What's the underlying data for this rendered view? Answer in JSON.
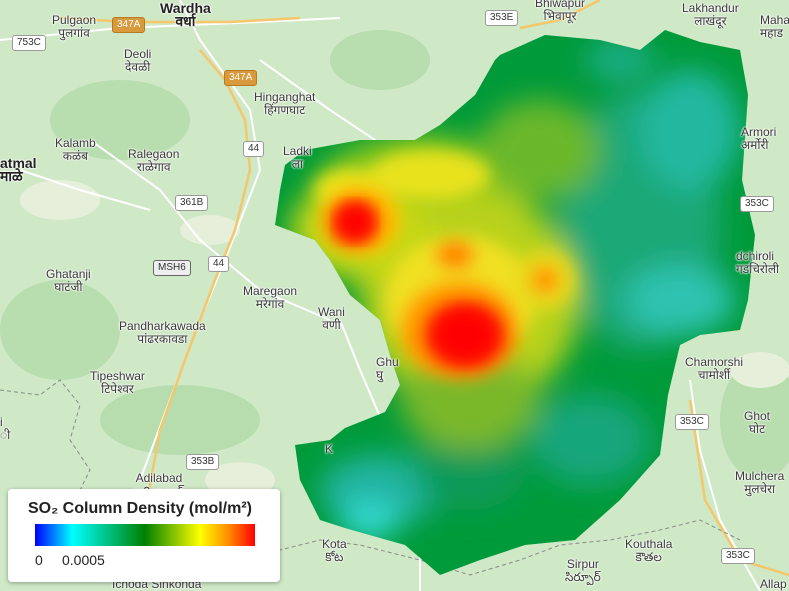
{
  "places": [
    {
      "id": "wardha",
      "en": "Wardha",
      "loc": "वर्धा",
      "big": true
    },
    {
      "id": "pulgaon",
      "en": "Pulgaon",
      "loc": "पुलगांव"
    },
    {
      "id": "deoli",
      "en": "Deoli",
      "loc": "देवळी"
    },
    {
      "id": "bhiwapur",
      "en": "Bhiwapur",
      "loc": "भिवापूर"
    },
    {
      "id": "lakhandur",
      "en": "Lakhandur",
      "loc": "लाखंदूर"
    },
    {
      "id": "maha",
      "en": "Maha",
      "loc": "महाड"
    },
    {
      "id": "hinganghat",
      "en": "Hinganghat",
      "loc": "हिंगणघाट"
    },
    {
      "id": "kalamb",
      "en": "Kalamb",
      "loc": "कळंब"
    },
    {
      "id": "ralegaon",
      "en": "Ralegaon",
      "loc": "राळेगाव"
    },
    {
      "id": "ladki",
      "en": "Ladki",
      "loc": "ला"
    },
    {
      "id": "yavatmal",
      "en": "atmal",
      "loc": "माळे",
      "big": true
    },
    {
      "id": "armori",
      "en": "Armori",
      "loc": "अर्मोरी"
    },
    {
      "id": "gadchiroli",
      "en": "dchiroli",
      "loc": "गडचिरोली"
    },
    {
      "id": "ghatanji",
      "en": "Ghatanji",
      "loc": "घाटंजी"
    },
    {
      "id": "maregaon",
      "en": "Maregaon",
      "loc": "मरेगांव"
    },
    {
      "id": "wani",
      "en": "Wani",
      "loc": "वणी"
    },
    {
      "id": "pandharkawada",
      "en": "Pandharkawada",
      "loc": "पांढरकावडा"
    },
    {
      "id": "ghu",
      "en": "Ghu",
      "loc": "घु"
    },
    {
      "id": "chamorshi",
      "en": "Chamorshi",
      "loc": "चामोर्शी"
    },
    {
      "id": "tipeshwar",
      "en": "Tipeshwar",
      "loc": "टिपेश्वर"
    },
    {
      "id": "ghot",
      "en": "Ghot",
      "loc": "घोट"
    },
    {
      "id": "mulchera",
      "en": "Mulchera",
      "loc": "मुलचेरा"
    },
    {
      "id": "adilabad",
      "en": "Adilabad",
      "loc": "ఆదిలాబాద్"
    },
    {
      "id": "kota",
      "en": "Kota",
      "loc": "కోట"
    },
    {
      "id": "sirpur",
      "en": "Sirpur",
      "loc": "సిర్పూర్"
    },
    {
      "id": "kouthala",
      "en": "Kouthala",
      "loc": "కౌతల"
    },
    {
      "id": "allap",
      "en": "Allap",
      "loc": ""
    },
    {
      "id": "ichoda",
      "en": "Ichoda Sinkonda",
      "loc": ""
    },
    {
      "id": "i",
      "en": "i",
      "loc": "ी"
    },
    {
      "id": "k",
      "en": "K",
      "loc": ""
    }
  ],
  "shields": [
    {
      "id": "347a-top",
      "label": "347A",
      "kind": "nh"
    },
    {
      "id": "753c",
      "label": "753C",
      "kind": "sh"
    },
    {
      "id": "353e",
      "label": "353E",
      "kind": "sh"
    },
    {
      "id": "347a-mid",
      "label": "347A",
      "kind": "nh"
    },
    {
      "id": "44-top",
      "label": "44",
      "kind": "sh"
    },
    {
      "id": "361b",
      "label": "361B",
      "kind": "sh"
    },
    {
      "id": "msh6",
      "label": "MSH6",
      "kind": "msh"
    },
    {
      "id": "44-mid",
      "label": "44",
      "kind": "sh"
    },
    {
      "id": "353c-right",
      "label": "353C",
      "kind": "sh"
    },
    {
      "id": "353c-mid",
      "label": "353C",
      "kind": "sh"
    },
    {
      "id": "353b",
      "label": "353B",
      "kind": "sh"
    },
    {
      "id": "353c-bottom",
      "label": "353C",
      "kind": "sh"
    }
  ],
  "overlay": {
    "variable": "SO₂ Column Density",
    "colors": [
      "#0000ff",
      "#00ffff",
      "#008000",
      "#ffff00",
      "#ff8c00",
      "#ff0000"
    ]
  },
  "legend": {
    "title": "SO₂ Column Density (mol/m²)",
    "min": "0",
    "max": "0.0005"
  }
}
